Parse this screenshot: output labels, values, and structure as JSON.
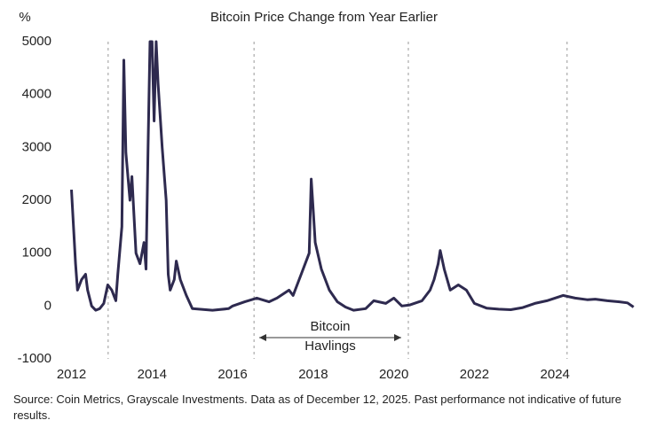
{
  "chart_data": {
    "type": "line",
    "title": "Bitcoin Price Change from Year Earlier",
    "y_label": "%",
    "x": [
      2012.0,
      2012.05,
      2012.1,
      2012.15,
      2012.25,
      2012.35,
      2012.4,
      2012.5,
      2012.6,
      2012.7,
      2012.8,
      2012.9,
      2013.0,
      2013.1,
      2013.15,
      2013.25,
      2013.3,
      2013.35,
      2013.45,
      2013.5,
      2013.6,
      2013.7,
      2013.8,
      2013.85,
      2013.9,
      2013.95,
      2014.0,
      2014.05,
      2014.1,
      2014.15,
      2014.25,
      2014.35,
      2014.4,
      2014.45,
      2014.55,
      2014.6,
      2014.7,
      2014.85,
      2015.0,
      2015.5,
      2015.9,
      2016.0,
      2016.3,
      2016.6,
      2016.9,
      2017.1,
      2017.4,
      2017.5,
      2017.7,
      2017.9,
      2017.95,
      2018.0,
      2018.05,
      2018.2,
      2018.4,
      2018.6,
      2018.8,
      2019.0,
      2019.3,
      2019.5,
      2019.8,
      2020.0,
      2020.2,
      2020.4,
      2020.7,
      2020.9,
      2021.0,
      2021.1,
      2021.15,
      2021.25,
      2021.4,
      2021.6,
      2021.8,
      2022.0,
      2022.3,
      2022.6,
      2022.9,
      2023.2,
      2023.5,
      2023.8,
      2024.0,
      2024.2,
      2024.5,
      2024.8,
      2025.0,
      2025.3,
      2025.6,
      2025.8,
      2025.95
    ],
    "series": [
      {
        "color": "#2e2a4f",
        "values": [
          2200,
          1500,
          800,
          300,
          500,
          600,
          300,
          0,
          -80,
          -50,
          50,
          400,
          300,
          100,
          600,
          1500,
          4650,
          2900,
          2000,
          2450,
          1000,
          800,
          1200,
          700,
          3000,
          5000,
          5000,
          3500,
          5000,
          4200,
          3000,
          2000,
          600,
          300,
          500,
          850,
          500,
          200,
          -50,
          -80,
          -50,
          0,
          80,
          150,
          80,
          150,
          300,
          200,
          600,
          1000,
          2400,
          1800,
          1200,
          700,
          300,
          80,
          -20,
          -80,
          -50,
          100,
          50,
          150,
          0,
          20,
          100,
          300,
          500,
          800,
          1050,
          700,
          300,
          400,
          300,
          50,
          -40,
          -60,
          -70,
          -30,
          50,
          100,
          150,
          200,
          150,
          120,
          130,
          100,
          80,
          60,
          -20
        ]
      }
    ],
    "xlim": [
      2011.9,
      2026.0
    ],
    "xticks": [
      2012,
      2014,
      2016,
      2018,
      2020,
      2022,
      2024
    ],
    "ylim": [
      -1000,
      5000
    ],
    "yticks": [
      -1000,
      0,
      1000,
      2000,
      3000,
      4000,
      5000
    ],
    "halvings": [
      2012.91,
      2016.53,
      2020.36,
      2024.3
    ],
    "annotation": [
      "Bitcoin",
      "Havlings"
    ],
    "source": "Source: Coin Metrics, Grayscale Investments. Data as of December 12, 2025. Past performance not indicative of future results."
  }
}
